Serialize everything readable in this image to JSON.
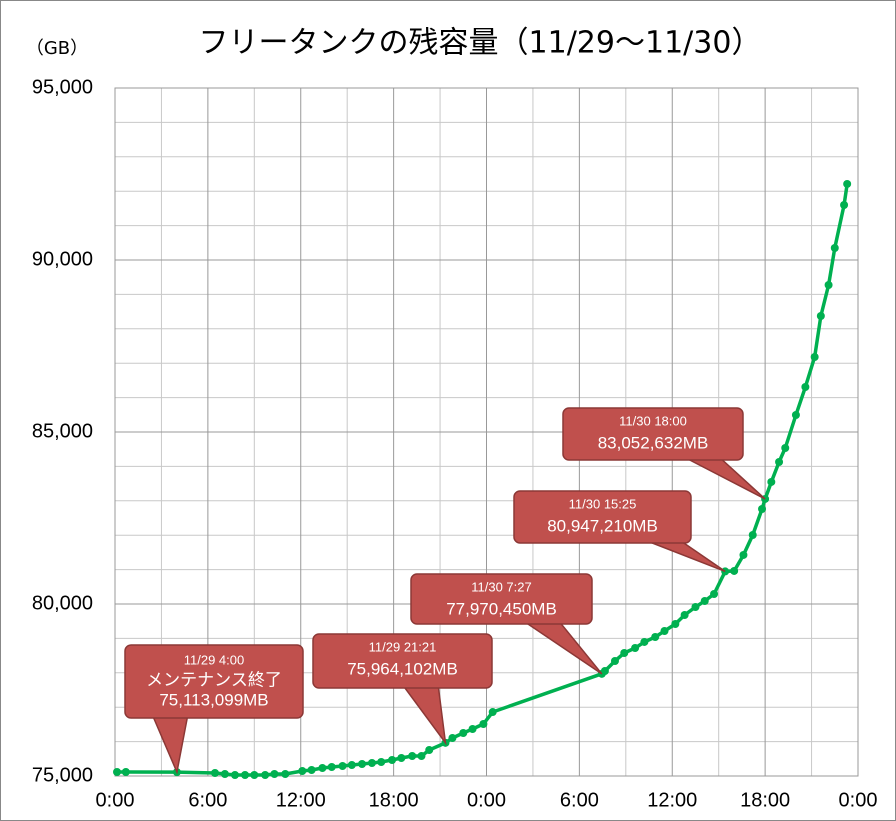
{
  "chart_data": {
    "type": "line",
    "title": "フリータンクの残容量（11/29～11/30）",
    "y_unit": "（GB）",
    "xlim": [
      0,
      48
    ],
    "ylim": [
      75000,
      95000
    ],
    "xticks": [
      {
        "value": 0,
        "label": "0:00"
      },
      {
        "value": 6,
        "label": "6:00"
      },
      {
        "value": 12,
        "label": "12:00"
      },
      {
        "value": 18,
        "label": "18:00"
      },
      {
        "value": 24,
        "label": "0:00"
      },
      {
        "value": 30,
        "label": "6:00"
      },
      {
        "value": 36,
        "label": "12:00"
      },
      {
        "value": 42,
        "label": "18:00"
      },
      {
        "value": 48,
        "label": "0:00"
      }
    ],
    "yticks": [
      {
        "value": 75000,
        "label": "75,000"
      },
      {
        "value": 80000,
        "label": "80,000"
      },
      {
        "value": 85000,
        "label": "85,000"
      },
      {
        "value": 90000,
        "label": "90,000"
      },
      {
        "value": 95000,
        "label": "95,000"
      }
    ],
    "minor_xticks": [
      3,
      9,
      15,
      21,
      27,
      33,
      39,
      45
    ],
    "minor_yticks": [
      76000,
      77000,
      78000,
      79000,
      81000,
      82000,
      83000,
      84000,
      86000,
      87000,
      88000,
      89000,
      91000,
      92000,
      93000,
      94000
    ],
    "grid": true,
    "series": [
      {
        "color": "#00b050",
        "x": [
          0.13,
          0.7,
          4.0,
          6.46,
          7.1,
          7.75,
          8.4,
          9.0,
          9.7,
          10.3,
          11.0,
          12.1,
          12.7,
          13.4,
          14.0,
          14.7,
          15.3,
          15.96,
          16.6,
          17.2,
          17.9,
          18.5,
          19.2,
          19.8,
          20.3,
          21.35,
          21.8,
          22.5,
          23.1,
          23.8,
          24.4,
          31.45,
          31.65,
          32.3,
          32.9,
          33.6,
          34.2,
          34.9,
          35.5,
          36.2,
          36.8,
          37.5,
          38.1,
          38.7,
          39.42,
          40.0,
          40.6,
          41.2,
          41.8,
          42.0,
          42.4,
          42.9,
          43.3,
          43.99,
          44.6,
          45.2,
          45.6,
          46.1,
          46.5,
          47.1,
          47.3
        ],
        "values": [
          75116,
          75116,
          75113,
          75087,
          75058,
          75029,
          75029,
          75029,
          75029,
          75058,
          75058,
          75145,
          75174,
          75233,
          75262,
          75291,
          75320,
          75349,
          75378,
          75407,
          75465,
          75523,
          75581,
          75581,
          75756,
          75964,
          76105,
          76250,
          76366,
          76512,
          76860,
          77970,
          78052,
          78343,
          78576,
          78721,
          78896,
          79041,
          79215,
          79419,
          79680,
          79913,
          80087,
          80291,
          80947,
          80960,
          81425,
          82006,
          82762,
          83053,
          83547,
          84128,
          84535,
          85494,
          86308,
          87180,
          88372,
          89273,
          90349,
          91599,
          92210
        ]
      }
    ],
    "annotations": [
      {
        "x": 4.0,
        "y": 75113.099,
        "lines": [
          "11/29 4:00",
          "メンテナンス終了",
          "75,113,099MB"
        ]
      },
      {
        "x": 21.35,
        "y": 75964.102,
        "lines": [
          "11/29 21:21",
          "75,964,102MB"
        ]
      },
      {
        "x": 31.45,
        "y": 77970.45,
        "lines": [
          "11/30 7:27",
          "77,970,450MB"
        ]
      },
      {
        "x": 39.42,
        "y": 80947.21,
        "lines": [
          "11/30 15:25",
          "80,947,210MB"
        ]
      },
      {
        "x": 42.0,
        "y": 83052.632,
        "lines": [
          "11/30 18:00",
          "83,052,632MB"
        ]
      }
    ]
  }
}
